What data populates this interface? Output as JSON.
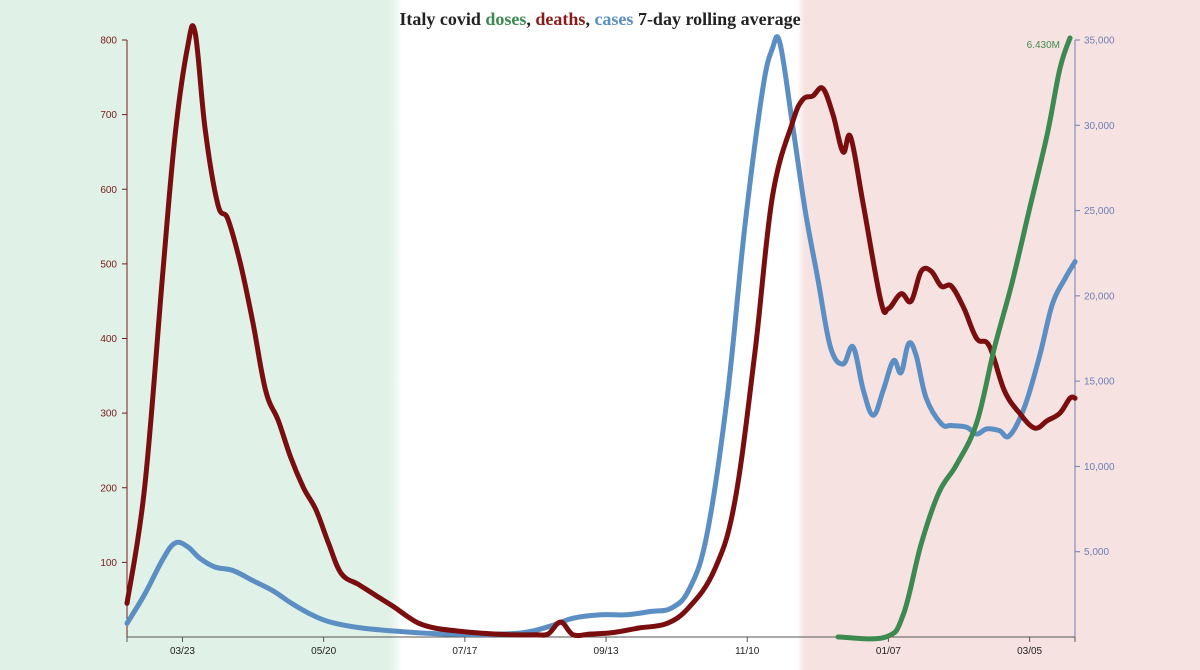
{
  "title": {
    "prefix": "Italy covid ",
    "doses": "doses",
    "sep1": ", ",
    "deaths": "deaths",
    "sep2": ", ",
    "cases": "cases",
    "suffix": " 7-day rolling average"
  },
  "colors": {
    "doses": "#3c8a4f",
    "deaths": "#7a0e0e",
    "cases": "#5b8ec2",
    "flag_green": "#e0f1e7",
    "flag_red": "#f7e2e2",
    "left_axis": "#7a1a1a",
    "right_axis": "#6d7fb3"
  },
  "chart_data": {
    "type": "line",
    "title": "Italy covid doses, deaths, cases 7-day rolling average",
    "x_tick_labels": [
      "03/23",
      "05/20",
      "07/17",
      "09/13",
      "11/10",
      "01/07",
      "03/05"
    ],
    "x_range": [
      "03/01",
      "03/12"
    ],
    "left_axis": {
      "series": "deaths",
      "ylim": [
        0,
        800
      ],
      "ticks": [
        100,
        200,
        300,
        400,
        500,
        600,
        700,
        800
      ]
    },
    "right_axis": {
      "series": "cases",
      "ylim": [
        0,
        35000
      ],
      "ticks": [
        "5,000",
        "10,000",
        "15,000",
        "20,000",
        "25,000",
        "30,000",
        "35,000"
      ]
    },
    "annotation": "6.430M",
    "series": [
      {
        "name": "deaths",
        "axis": "left",
        "points": [
          [
            "03/01",
            45
          ],
          [
            "03/08",
            200
          ],
          [
            "03/15",
            480
          ],
          [
            "03/20",
            670
          ],
          [
            "03/25",
            790
          ],
          [
            "03/28",
            810
          ],
          [
            "04/01",
            680
          ],
          [
            "04/06",
            580
          ],
          [
            "04/10",
            560
          ],
          [
            "04/15",
            500
          ],
          [
            "04/20",
            420
          ],
          [
            "04/25",
            330
          ],
          [
            "04/30",
            290
          ],
          [
            "05/05",
            240
          ],
          [
            "05/10",
            200
          ],
          [
            "05/15",
            170
          ],
          [
            "05/20",
            125
          ],
          [
            "05/25",
            85
          ],
          [
            "06/01",
            70
          ],
          [
            "06/08",
            55
          ],
          [
            "06/15",
            40
          ],
          [
            "06/20",
            28
          ],
          [
            "06/25",
            18
          ],
          [
            "07/01",
            12
          ],
          [
            "07/10",
            8
          ],
          [
            "07/20",
            5
          ],
          [
            "08/01",
            3
          ],
          [
            "08/10",
            3
          ],
          [
            "08/15",
            4
          ],
          [
            "08/20",
            20
          ],
          [
            "08/25",
            3
          ],
          [
            "09/01",
            4
          ],
          [
            "09/10",
            6
          ],
          [
            "09/20",
            12
          ],
          [
            "10/01",
            18
          ],
          [
            "10/10",
            40
          ],
          [
            "10/20",
            90
          ],
          [
            "10/28",
            180
          ],
          [
            "11/05",
            380
          ],
          [
            "11/12",
            590
          ],
          [
            "11/20",
            690
          ],
          [
            "11/24",
            720
          ],
          [
            "11/28",
            725
          ],
          [
            "12/02",
            735
          ],
          [
            "12/06",
            700
          ],
          [
            "12/10",
            650
          ],
          [
            "12/13",
            670
          ],
          [
            "12/18",
            580
          ],
          [
            "12/25",
            450
          ],
          [
            "12/28",
            440
          ],
          [
            "01/02",
            460
          ],
          [
            "01/06",
            450
          ],
          [
            "01/10",
            490
          ],
          [
            "01/14",
            490
          ],
          [
            "01/18",
            470
          ],
          [
            "01/22",
            470
          ],
          [
            "01/27",
            440
          ],
          [
            "02/01",
            400
          ],
          [
            "02/06",
            390
          ],
          [
            "02/12",
            330
          ],
          [
            "02/18",
            300
          ],
          [
            "02/24",
            280
          ],
          [
            "03/01",
            290
          ],
          [
            "03/06",
            300
          ],
          [
            "03/10",
            320
          ],
          [
            "03/12",
            320
          ]
        ]
      },
      {
        "name": "cases",
        "axis": "right",
        "points": [
          [
            "03/01",
            800
          ],
          [
            "03/08",
            2500
          ],
          [
            "03/15",
            4500
          ],
          [
            "03/20",
            5500
          ],
          [
            "03/25",
            5300
          ],
          [
            "03/30",
            4600
          ],
          [
            "04/05",
            4100
          ],
          [
            "04/12",
            3900
          ],
          [
            "04/20",
            3300
          ],
          [
            "04/28",
            2700
          ],
          [
            "05/05",
            2000
          ],
          [
            "05/12",
            1400
          ],
          [
            "05/20",
            900
          ],
          [
            "06/01",
            550
          ],
          [
            "06/15",
            350
          ],
          [
            "07/01",
            200
          ],
          [
            "07/20",
            150
          ],
          [
            "08/05",
            250
          ],
          [
            "08/15",
            600
          ],
          [
            "08/25",
            1100
          ],
          [
            "09/05",
            1300
          ],
          [
            "09/15",
            1300
          ],
          [
            "09/25",
            1500
          ],
          [
            "10/03",
            1700
          ],
          [
            "10/10",
            2800
          ],
          [
            "10/17",
            6000
          ],
          [
            "10/25",
            14000
          ],
          [
            "11/01",
            24000
          ],
          [
            "11/08",
            32000
          ],
          [
            "11/12",
            34500
          ],
          [
            "11/15",
            34800
          ],
          [
            "11/20",
            30000
          ],
          [
            "11/25",
            25000
          ],
          [
            "11/30",
            21000
          ],
          [
            "12/05",
            17000
          ],
          [
            "12/10",
            16000
          ],
          [
            "12/14",
            17000
          ],
          [
            "12/18",
            14500
          ],
          [
            "12/22",
            13000
          ],
          [
            "12/26",
            14500
          ],
          [
            "12/30",
            16200
          ],
          [
            "01/02",
            15500
          ],
          [
            "01/05",
            17200
          ],
          [
            "01/08",
            16500
          ],
          [
            "01/12",
            14000
          ],
          [
            "01/18",
            12500
          ],
          [
            "01/22",
            12400
          ],
          [
            "01/28",
            12300
          ],
          [
            "02/01",
            11900
          ],
          [
            "02/05",
            12200
          ],
          [
            "02/10",
            12100
          ],
          [
            "02/14",
            11800
          ],
          [
            "02/20",
            13500
          ],
          [
            "02/26",
            16500
          ],
          [
            "03/03",
            19500
          ],
          [
            "03/08",
            21000
          ],
          [
            "03/12",
            22000
          ]
        ]
      },
      {
        "name": "doses",
        "axis": "doses",
        "points": [
          [
            "12/08",
            0
          ],
          [
            "12/27",
            0
          ],
          [
            "01/03",
            0.25
          ],
          [
            "01/10",
            1.0
          ],
          [
            "01/17",
            1.55
          ],
          [
            "01/24",
            1.85
          ],
          [
            "02/01",
            2.3
          ],
          [
            "02/08",
            3.1
          ],
          [
            "02/15",
            3.8
          ],
          [
            "02/22",
            4.6
          ],
          [
            "03/01",
            5.4
          ],
          [
            "03/06",
            6.1
          ],
          [
            "03/10",
            6.43
          ]
        ]
      }
    ]
  }
}
